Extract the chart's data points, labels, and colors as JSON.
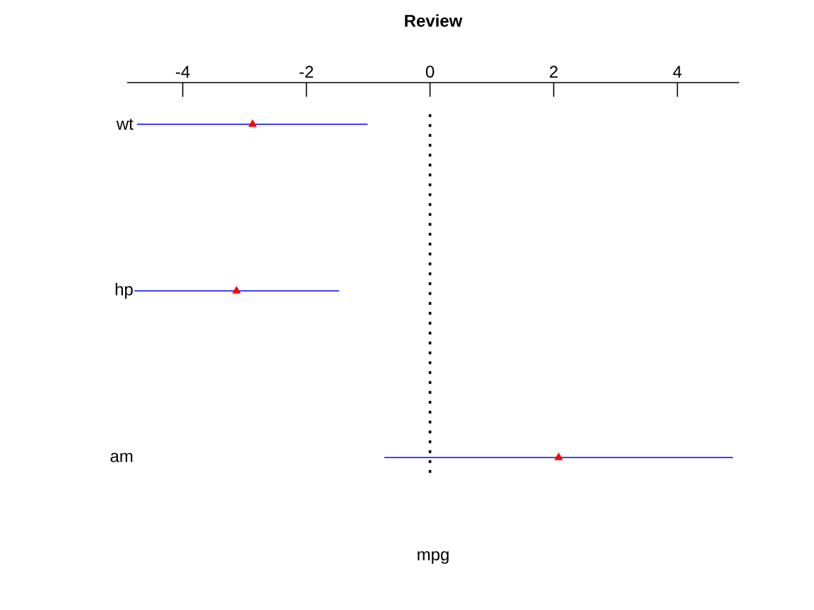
{
  "chart_data": {
    "type": "scatter",
    "orientation": "horizontal",
    "title": "Review",
    "xlabel": "mpg",
    "categories": [
      "wt",
      "hp",
      "am"
    ],
    "values": [
      -2.87,
      -3.13,
      2.08
    ],
    "errors": [
      [
        -4.74,
        -1.01
      ],
      [
        -4.78,
        -1.47
      ],
      [
        -0.74,
        4.9
      ]
    ],
    "color": "#ff0000",
    "marker": "triangle",
    "xlim": [
      -4.9,
      5
    ],
    "xticks": [
      -4,
      -2,
      0,
      2,
      4
    ],
    "ref_lines": [
      {
        "axis": "x",
        "value": 0,
        "line_style": "dotted",
        "color": "#000000"
      }
    ]
  }
}
